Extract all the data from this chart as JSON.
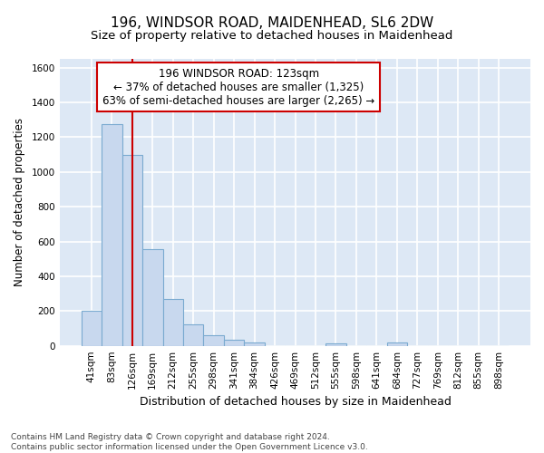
{
  "title1": "196, WINDSOR ROAD, MAIDENHEAD, SL6 2DW",
  "title2": "Size of property relative to detached houses in Maidenhead",
  "xlabel": "Distribution of detached houses by size in Maidenhead",
  "ylabel": "Number of detached properties",
  "footnote": "Contains HM Land Registry data © Crown copyright and database right 2024.\nContains public sector information licensed under the Open Government Licence v3.0.",
  "bar_labels": [
    "41sqm",
    "83sqm",
    "126sqm",
    "169sqm",
    "212sqm",
    "255sqm",
    "298sqm",
    "341sqm",
    "384sqm",
    "426sqm",
    "469sqm",
    "512sqm",
    "555sqm",
    "598sqm",
    "641sqm",
    "684sqm",
    "727sqm",
    "769sqm",
    "812sqm",
    "855sqm",
    "898sqm"
  ],
  "bar_values": [
    200,
    1275,
    1100,
    555,
    270,
    125,
    60,
    33,
    20,
    0,
    0,
    0,
    15,
    0,
    0,
    20,
    0,
    0,
    0,
    0,
    0
  ],
  "bar_color": "#c8d8ee",
  "bar_edge_color": "#7aaad0",
  "vline_x": 2,
  "vline_color": "#cc0000",
  "annotation_text": "196 WINDSOR ROAD: 123sqm\n← 37% of detached houses are smaller (1,325)\n63% of semi-detached houses are larger (2,265) →",
  "annotation_box_color": "#ffffff",
  "annotation_box_edge": "#cc0000",
  "ylim": [
    0,
    1650
  ],
  "yticks": [
    0,
    200,
    400,
    600,
    800,
    1000,
    1200,
    1400,
    1600
  ],
  "background_color": "#dde8f5",
  "grid_color": "#ffffff",
  "fig_bg_color": "#ffffff",
  "title1_fontsize": 11,
  "title2_fontsize": 9.5,
  "xlabel_fontsize": 9,
  "ylabel_fontsize": 8.5,
  "tick_fontsize": 7.5,
  "annotation_fontsize": 8.5,
  "footnote_fontsize": 6.5
}
